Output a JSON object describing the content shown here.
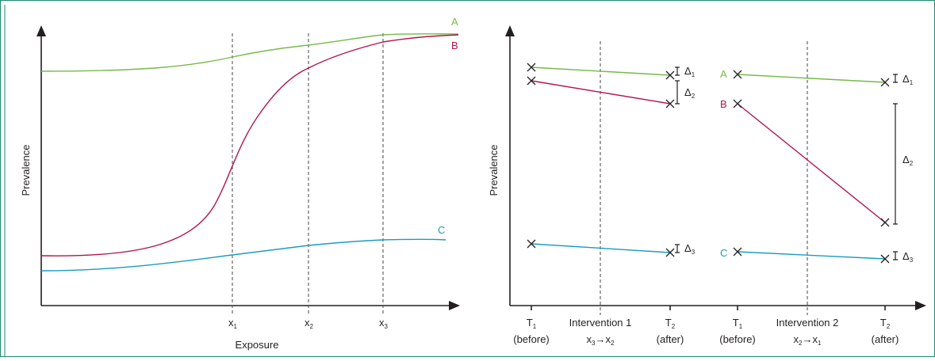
{
  "colors": {
    "frame": "#1b8a6b",
    "A": "#77b94a",
    "B": "#b0154f",
    "C": "#1a9cc0",
    "axis": "#231f20"
  },
  "left": {
    "y_label": "Prevalence",
    "x_label": "Exposure",
    "x_ticks": [
      "x",
      "x",
      "x"
    ],
    "x_tick_subs": [
      "1",
      "2",
      "3"
    ],
    "curve_labels": [
      "A",
      "B",
      "C"
    ]
  },
  "right": {
    "y_label": "Prevalence",
    "periods": [
      {
        "label": "T",
        "sub": "1",
        "note": "(before)"
      },
      {
        "label": "T",
        "sub": "2",
        "note": "(after)"
      },
      {
        "label": "T",
        "sub": "1",
        "note": "(before)"
      },
      {
        "label": "T",
        "sub": "2",
        "note": "(after)"
      }
    ],
    "interventions": [
      {
        "title": "Intervention 1",
        "from": "x",
        "from_sub": "3",
        "arrow": "→",
        "to": "x",
        "to_sub": "2"
      },
      {
        "title": "Intervention 2",
        "from": "x",
        "from_sub": "2",
        "arrow": "→",
        "to": "x",
        "to_sub": "1"
      }
    ],
    "deltas": {
      "symbol": "Δ",
      "subs": [
        "1",
        "2",
        "3"
      ]
    },
    "series_labels": [
      "A",
      "B",
      "C"
    ]
  }
}
